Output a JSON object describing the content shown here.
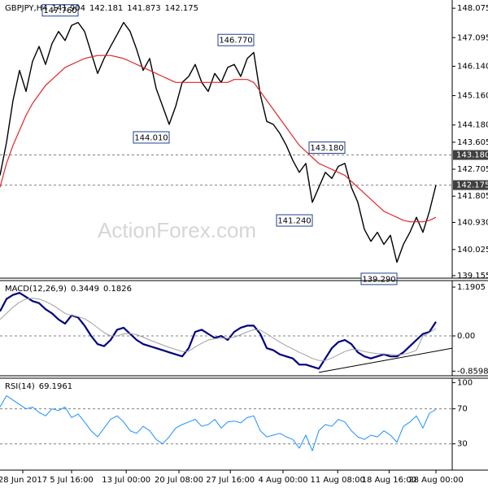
{
  "chart_data": [
    {
      "type": "line",
      "title": "GBPJPY,H4",
      "ohlc": [
        141.904,
        142.181,
        141.873,
        142.175
      ],
      "watermark": "ActionForex.com",
      "xlim": [
        0,
        69.5
      ],
      "ylim": [
        139.07,
        148.35
      ],
      "yticks": [
        148.075,
        147.095,
        {
          "value": 146.14,
          "label": "146.140"
        },
        {
          "value": 145.16,
          "label": "145.160"
        },
        {
          "value": 144.18,
          "label": "144.180"
        },
        143.605,
        142.705,
        141.805,
        {
          "value": 140.93,
          "label": "140.930"
        },
        140.025,
        139.155
      ],
      "hlines": [
        {
          "value": 143.18,
          "label": "143.180"
        },
        {
          "value": 142.175,
          "label": "142.175"
        }
      ],
      "annotations": [
        {
          "x": 12,
          "y": 147.76,
          "label": "147.760"
        },
        {
          "x": 26,
          "y": 144.01,
          "label": "144.010"
        },
        {
          "x": 39,
          "y": 146.77,
          "label": "146.770"
        },
        {
          "x": 53,
          "y": 143.18,
          "label": "143.180"
        },
        {
          "x": 48,
          "y": 141.24,
          "label": "141.240"
        },
        {
          "x": 61,
          "y": 139.29,
          "label": "139.290"
        }
      ],
      "series": [
        {
          "color": "#000000",
          "width": 1.4,
          "values": [
            142.5,
            143.6,
            145.0,
            146.0,
            145.3,
            146.3,
            146.8,
            146.2,
            146.9,
            147.3,
            147.0,
            147.5,
            147.6,
            147.3,
            146.6,
            145.9,
            146.4,
            146.8,
            147.2,
            147.6,
            147.3,
            146.7,
            146.0,
            146.4,
            145.4,
            144.8,
            144.2,
            144.8,
            145.6,
            145.8,
            146.2,
            145.6,
            145.3,
            145.9,
            145.6,
            146.1,
            146.2,
            145.8,
            146.4,
            146.6,
            145.2,
            144.3,
            144.2,
            143.9,
            143.5,
            143.0,
            142.6,
            142.9,
            141.6,
            142.1,
            142.6,
            142.4,
            142.8,
            142.9,
            142.1,
            141.6,
            140.7,
            140.3,
            140.6,
            140.2,
            140.5,
            139.6,
            140.2,
            140.6,
            141.1,
            140.6,
            141.3,
            142.175
          ]
        },
        {
          "color": "#e0262b",
          "width": 1.2,
          "values": [
            142.1,
            142.9,
            143.5,
            144.0,
            144.5,
            144.9,
            145.2,
            145.5,
            145.7,
            145.9,
            146.1,
            146.2,
            146.3,
            146.4,
            146.45,
            146.5,
            146.5,
            146.5,
            146.45,
            146.4,
            146.3,
            146.2,
            146.1,
            146.0,
            145.9,
            145.8,
            145.7,
            145.6,
            145.6,
            145.6,
            145.6,
            145.6,
            145.6,
            145.6,
            145.6,
            145.6,
            145.7,
            145.7,
            145.7,
            145.6,
            145.3,
            145.0,
            144.7,
            144.4,
            144.1,
            143.8,
            143.5,
            143.3,
            143.1,
            142.9,
            142.8,
            142.7,
            142.6,
            142.5,
            142.3,
            142.1,
            141.9,
            141.7,
            141.5,
            141.3,
            141.2,
            141.1,
            141.0,
            140.95,
            140.95,
            140.95,
            141.0,
            141.1
          ]
        }
      ]
    },
    {
      "type": "line",
      "title": "MACD(12,26,9)",
      "readings": [
        0.3449,
        0.1826
      ],
      "xlim": [
        0,
        69.5
      ],
      "ylim": [
        -0.972,
        1.349
      ],
      "yticks": [
        1.1905,
        {
          "value": 0,
          "label": "0.00"
        },
        -0.8598
      ],
      "hlines": [
        {
          "value": 0
        }
      ],
      "trendline": {
        "x": [
          49,
          69.5
        ],
        "y": [
          -0.89,
          -0.3
        ]
      },
      "series": [
        {
          "color": "#000080",
          "width": 2.2,
          "values": [
            0.6,
            0.9,
            1.0,
            1.05,
            0.95,
            0.85,
            0.8,
            0.65,
            0.55,
            0.4,
            0.3,
            0.5,
            0.45,
            0.25,
            0.0,
            -0.2,
            -0.25,
            -0.1,
            0.15,
            0.2,
            0.05,
            -0.1,
            -0.2,
            -0.25,
            -0.3,
            -0.35,
            -0.4,
            -0.45,
            -0.5,
            -0.3,
            0.1,
            0.15,
            0.05,
            -0.05,
            0.0,
            -0.1,
            0.1,
            0.2,
            0.25,
            0.25,
            0.05,
            -0.3,
            -0.35,
            -0.45,
            -0.5,
            -0.55,
            -0.7,
            -0.7,
            -0.75,
            -0.8,
            -0.55,
            -0.3,
            -0.15,
            -0.1,
            -0.2,
            -0.4,
            -0.5,
            -0.55,
            -0.5,
            -0.45,
            -0.5,
            -0.5,
            -0.4,
            -0.25,
            -0.1,
            0.05,
            0.1,
            0.3449
          ]
        },
        {
          "color": "#a0a0a0",
          "width": 1,
          "values": [
            0.4,
            0.55,
            0.7,
            0.82,
            0.9,
            0.92,
            0.9,
            0.84,
            0.76,
            0.66,
            0.55,
            0.5,
            0.47,
            0.42,
            0.32,
            0.2,
            0.08,
            0.0,
            0.0,
            0.05,
            0.06,
            0.03,
            -0.03,
            -0.1,
            -0.16,
            -0.22,
            -0.28,
            -0.33,
            -0.38,
            -0.37,
            -0.27,
            -0.18,
            -0.1,
            -0.07,
            -0.05,
            -0.06,
            -0.03,
            0.03,
            0.1,
            0.15,
            0.14,
            0.05,
            -0.05,
            -0.15,
            -0.24,
            -0.32,
            -0.4,
            -0.47,
            -0.55,
            -0.6,
            -0.6,
            -0.54,
            -0.46,
            -0.38,
            -0.33,
            -0.34,
            -0.38,
            -0.41,
            -0.43,
            -0.44,
            -0.45,
            -0.46,
            -0.45,
            -0.41,
            -0.35,
            0.0,
            0.08,
            0.1826
          ]
        }
      ]
    },
    {
      "type": "line",
      "title": "RSI(14)",
      "readings": [
        69.1961
      ],
      "xlim": [
        0,
        69.5
      ],
      "ylim": [
        0,
        105
      ],
      "yticks": [
        100,
        70,
        30
      ],
      "hlines": [
        {
          "value": 70
        },
        {
          "value": 30
        }
      ],
      "xticks": [
        {
          "value": 3.5,
          "label": "28 Jun 2017"
        },
        {
          "value": 11,
          "label": "5 Jul 16:00"
        },
        {
          "value": 19.4,
          "label": "13 Jul 00:00"
        },
        {
          "value": 27.5,
          "label": "20 Jul 08:00"
        },
        {
          "value": 35.4,
          "label": "27 Jul 16:00"
        },
        {
          "value": 43.5,
          "label": "4 Aug 00:00"
        },
        {
          "value": 51.9,
          "label": "11 Aug 08:00"
        },
        {
          "value": 59.8,
          "label": "18 Aug 16:00"
        },
        {
          "value": 67,
          "label": "28 Aug 00:00"
        }
      ],
      "series": [
        {
          "color": "#1e90ff",
          "width": 1,
          "values": [
            72,
            85,
            80,
            75,
            70,
            72,
            66,
            62,
            70,
            68,
            72,
            60,
            64,
            55,
            45,
            38,
            48,
            58,
            62,
            55,
            45,
            42,
            50,
            45,
            35,
            30,
            38,
            48,
            52,
            55,
            58,
            50,
            52,
            58,
            48,
            55,
            56,
            54,
            60,
            62,
            45,
            38,
            40,
            42,
            38,
            35,
            25,
            40,
            22,
            45,
            52,
            50,
            58,
            55,
            45,
            38,
            35,
            40,
            38,
            45,
            40,
            32,
            50,
            55,
            62,
            48,
            65,
            69.1961
          ]
        }
      ]
    }
  ]
}
